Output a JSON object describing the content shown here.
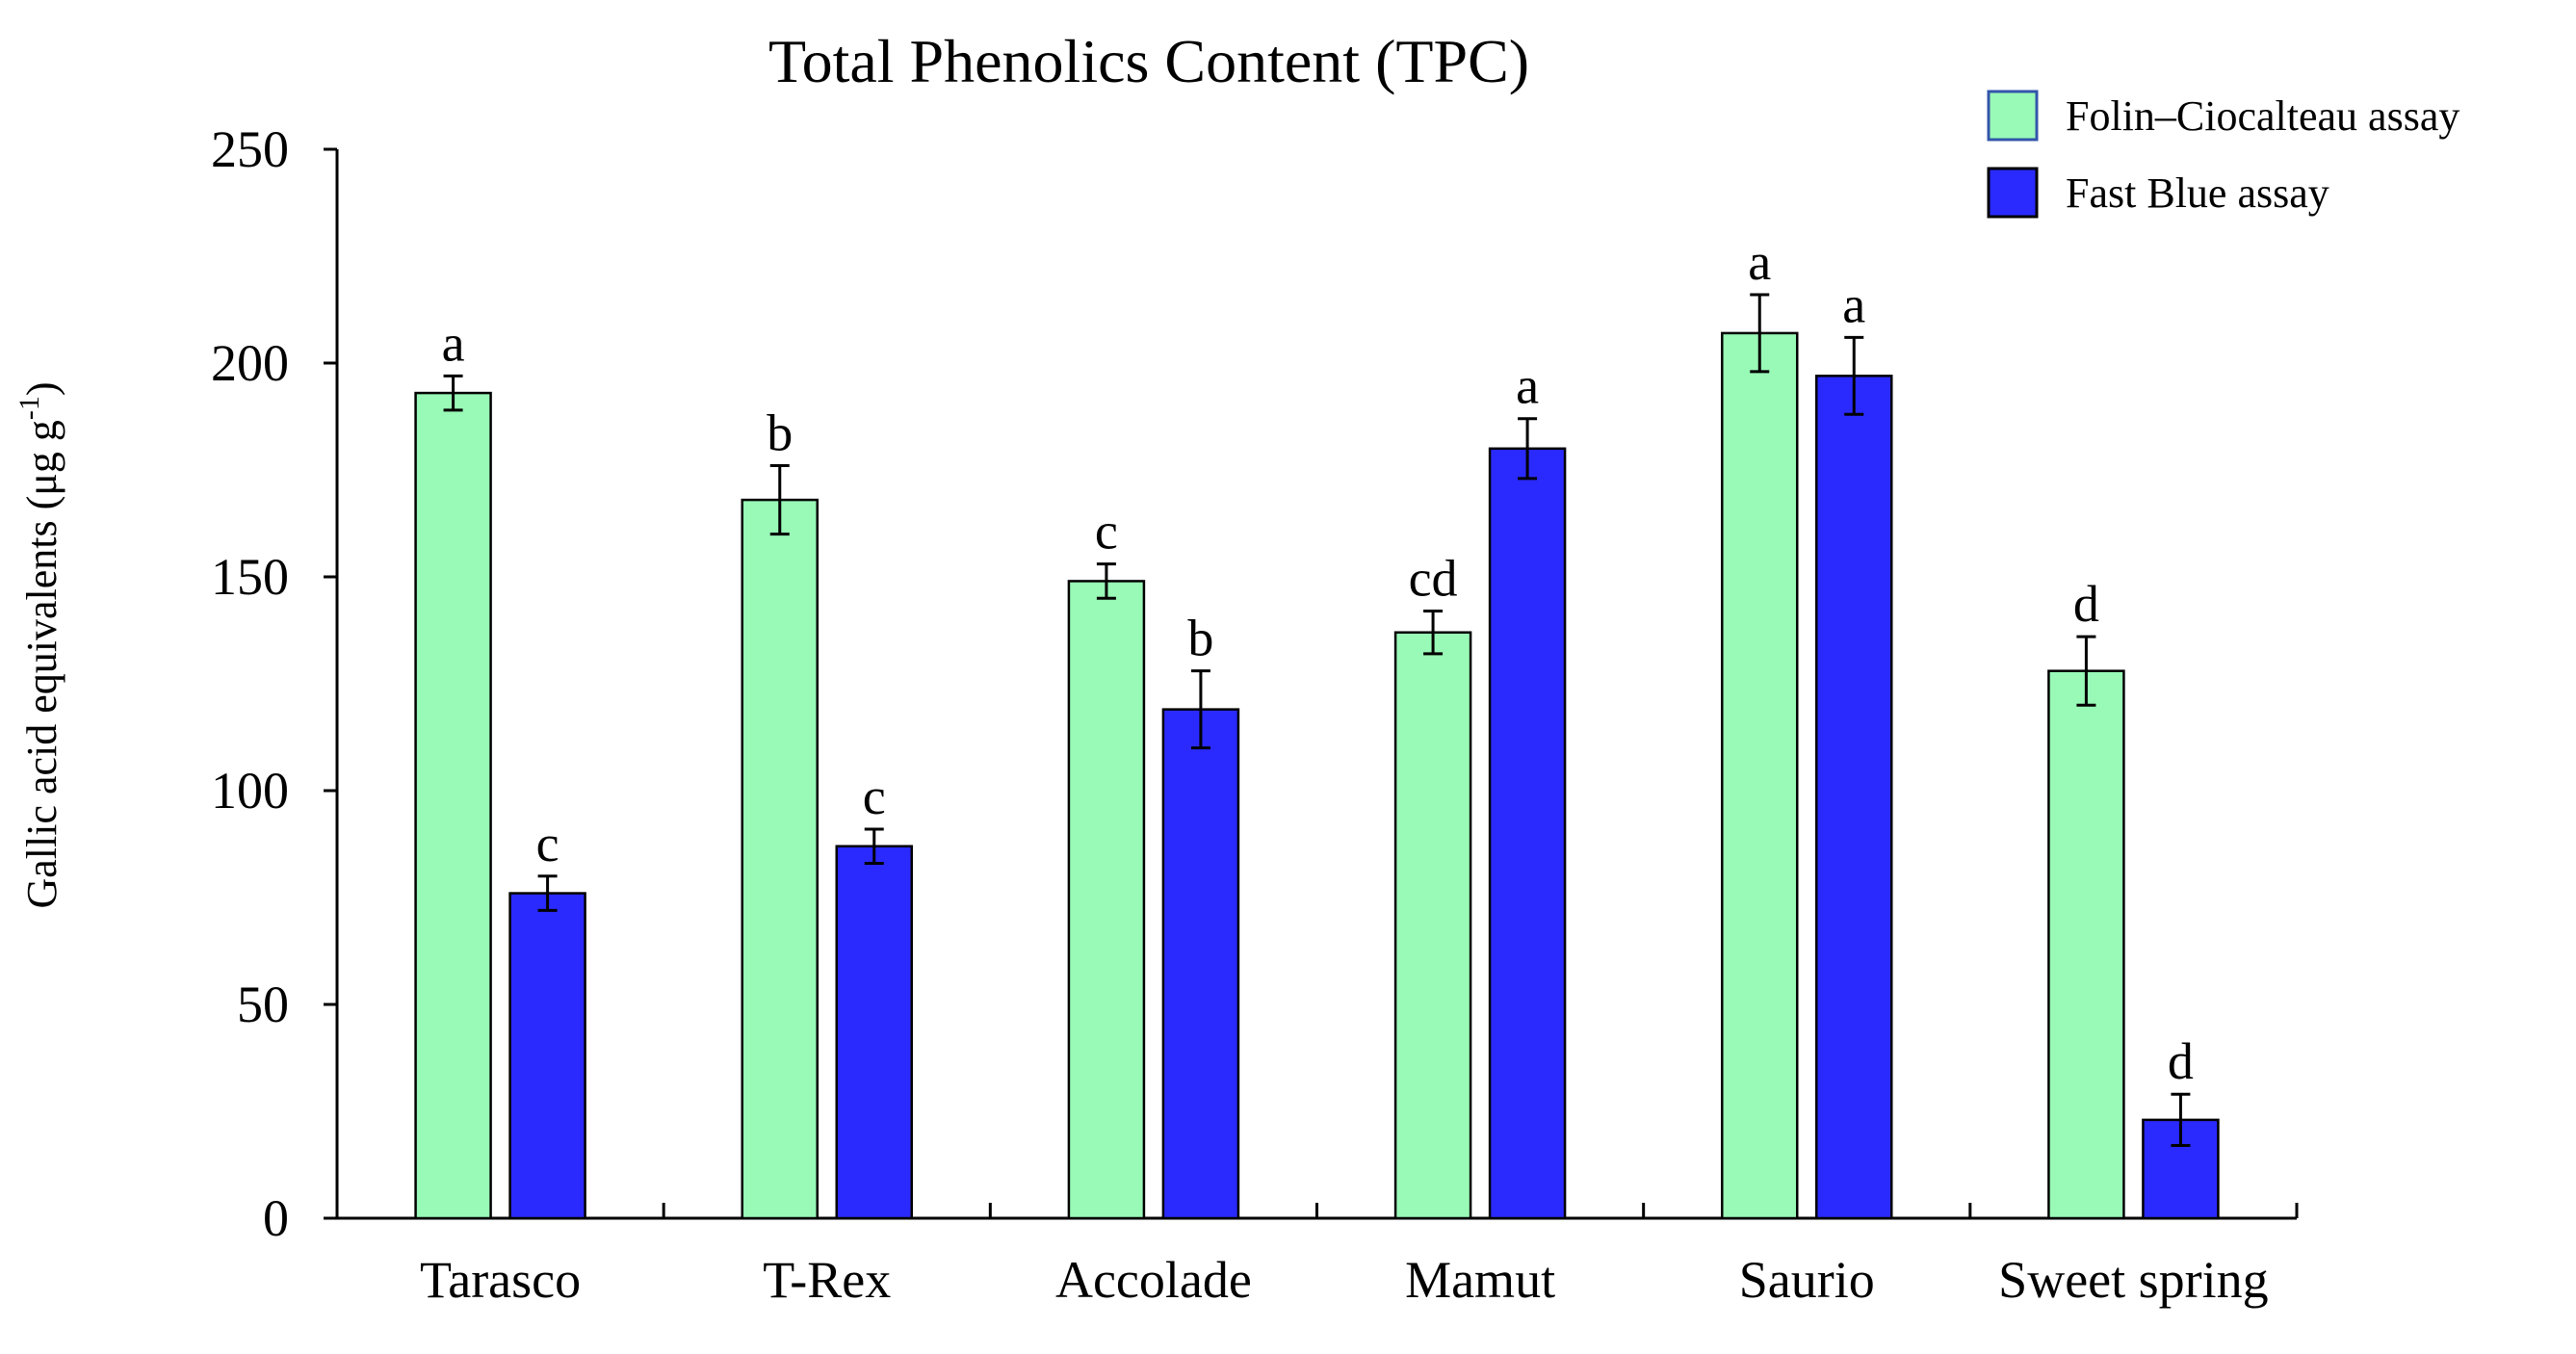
{
  "chart_data": {
    "type": "bar",
    "title": "Total Phenolics Content (TPC)",
    "xlabel": "",
    "ylabel": "Gallic acid equivalents (μg g",
    "ylabel_superscript": "-1",
    "ylabel_suffix": ")",
    "ylim": [
      0,
      250
    ],
    "yticks": [
      0,
      50,
      100,
      150,
      200,
      250
    ],
    "categories": [
      "Tarasco",
      "T-Rex",
      "Accolade",
      "Mamut",
      "Saurio",
      "Sweet spring"
    ],
    "legend_position": "top-right",
    "grid": false,
    "series": [
      {
        "name": "Folin–Ciocalteau assay",
        "color": "#99f9b7",
        "values": [
          193,
          168,
          149,
          137,
          207,
          128
        ],
        "errors": [
          4,
          8,
          4,
          5,
          9,
          8
        ],
        "labels": [
          "a",
          "b",
          "c",
          "cd",
          "a",
          "d"
        ]
      },
      {
        "name": "Fast Blue assay",
        "color": "#2a2aff",
        "values": [
          76,
          87,
          119,
          180,
          197,
          23
        ],
        "errors": [
          4,
          4,
          9,
          7,
          9,
          6
        ],
        "labels": [
          "c",
          "c",
          "b",
          "a",
          "a",
          "d"
        ]
      }
    ]
  }
}
